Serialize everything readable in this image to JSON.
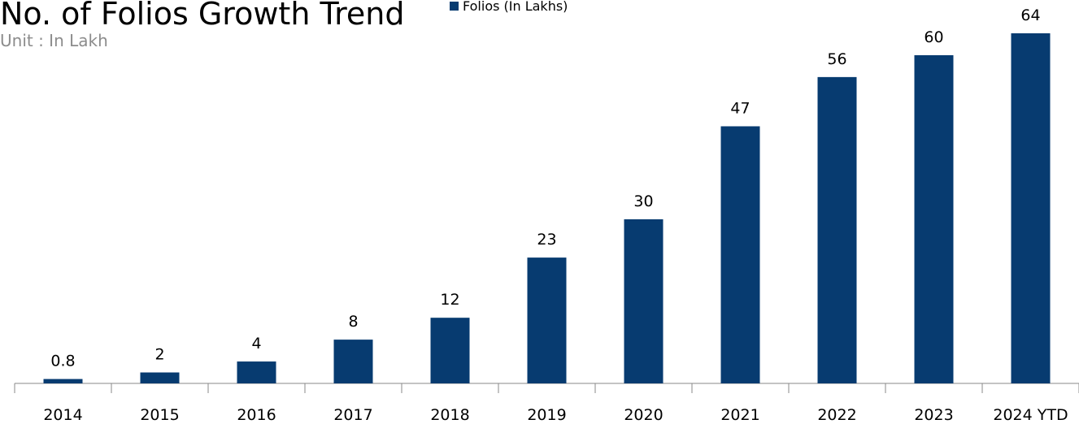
{
  "chart_data": {
    "type": "bar",
    "title": "No. of Folios Growth Trend",
    "subtitle": "Unit : In Lakh",
    "legend": "Folios (In Lakhs)",
    "color": "#073b70",
    "categories": [
      "2014",
      "2015",
      "2016",
      "2017",
      "2018",
      "2019",
      "2020",
      "2021",
      "2022",
      "2023",
      "2024 YTD"
    ],
    "values": [
      0.8,
      2,
      4,
      8,
      12,
      23,
      30,
      47,
      56,
      60,
      64
    ]
  }
}
